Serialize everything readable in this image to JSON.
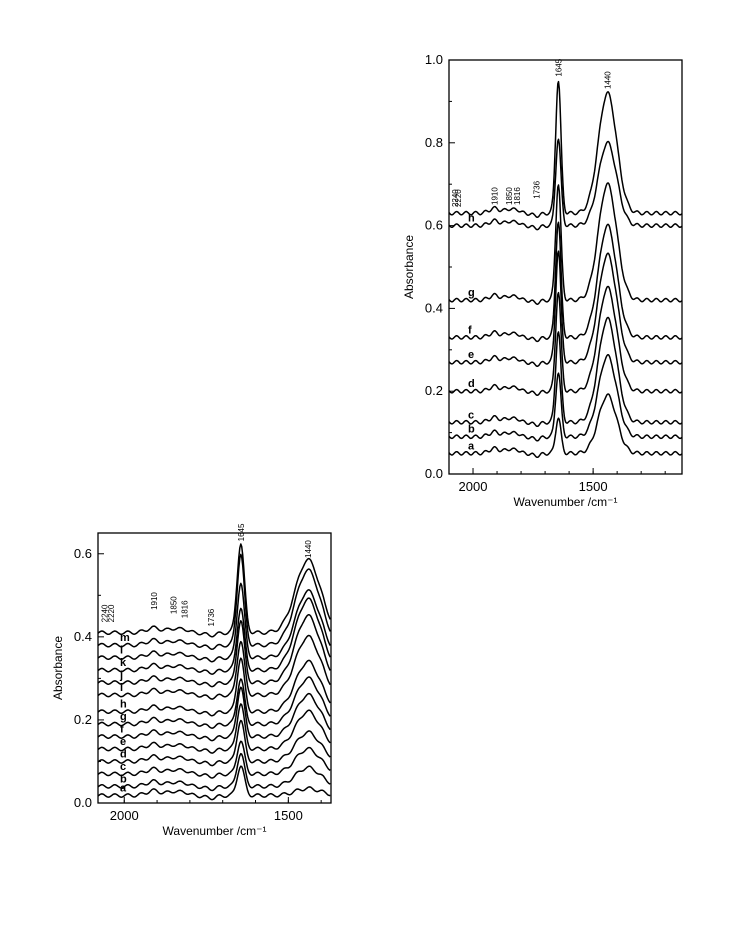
{
  "chart_data": [
    {
      "type": "line",
      "panel": "top",
      "xlabel": "Wavenumber /cm⁻¹",
      "ylabel": "Absorbance",
      "xlim": [
        2100,
        1130
      ],
      "ylim": [
        0,
        1.0
      ],
      "x_ticks": [
        2000,
        1500
      ],
      "x_tick_labels": [
        "2000",
        "1500"
      ],
      "y_ticks": [
        0,
        0.2,
        0.4,
        0.6,
        0.8,
        1.0
      ],
      "y_tick_labels": [
        "0.0",
        "0.2",
        "0.4",
        "0.6",
        "0.8",
        "1.0"
      ],
      "grid": false,
      "peak_labels": [
        {
          "text": "2240",
          "x": 2075,
          "y": 0.64
        },
        {
          "text": "2220",
          "x": 2062,
          "y": 0.64
        },
        {
          "text": "1910",
          "x": 1910,
          "y": 0.645
        },
        {
          "text": "1850",
          "x": 1850,
          "y": 0.645
        },
        {
          "text": "1816",
          "x": 1816,
          "y": 0.645
        },
        {
          "text": "1736",
          "x": 1736,
          "y": 0.66
        },
        {
          "text": "1645",
          "x": 1645,
          "y": 0.955
        },
        {
          "text": "1440",
          "x": 1440,
          "y": 0.925
        }
      ],
      "series": [
        {
          "label": "a",
          "base": 0.05,
          "peak_1645": 0.136,
          "peak_1440": 0.19
        },
        {
          "label": "b",
          "base": 0.09,
          "peak_1645": 0.245,
          "peak_1440": 0.285
        },
        {
          "label": "c",
          "base": 0.125,
          "peak_1645": 0.345,
          "peak_1440": 0.375
        },
        {
          "label": "d",
          "base": 0.2,
          "peak_1645": 0.44,
          "peak_1440": 0.45
        },
        {
          "label": "e",
          "base": 0.27,
          "peak_1645": 0.54,
          "peak_1440": 0.53
        },
        {
          "label": "f",
          "base": 0.33,
          "peak_1645": 0.61,
          "peak_1440": 0.6
        },
        {
          "label": "g",
          "base": 0.42,
          "peak_1645": 0.7,
          "peak_1440": 0.7
        },
        {
          "label": "h",
          "base": 0.6,
          "peak_1645": 0.81,
          "peak_1440": 0.8
        },
        {
          "label": "",
          "base": 0.63,
          "peak_1645": 0.95,
          "peak_1440": 0.92
        }
      ]
    },
    {
      "type": "line",
      "panel": "bottom",
      "xlabel": "Wavenumber /cm⁻¹",
      "ylabel": "Absorbance",
      "xlim": [
        2080,
        1370
      ],
      "ylim": [
        0,
        0.65
      ],
      "x_ticks": [
        2000,
        1500
      ],
      "x_tick_labels": [
        "2000",
        "1500"
      ],
      "y_ticks": [
        0,
        0.2,
        0.4,
        0.6
      ],
      "y_tick_labels": [
        "0.0",
        "0.2",
        "0.4",
        "0.6"
      ],
      "grid": false,
      "peak_labels": [
        {
          "text": "2240",
          "x": 2060,
          "y": 0.43
        },
        {
          "text": "2220",
          "x": 2040,
          "y": 0.43
        },
        {
          "text": "1910",
          "x": 1910,
          "y": 0.46
        },
        {
          "text": "1850",
          "x": 1850,
          "y": 0.45
        },
        {
          "text": "1816",
          "x": 1816,
          "y": 0.44
        },
        {
          "text": "1736",
          "x": 1736,
          "y": 0.42
        },
        {
          "text": "1645",
          "x": 1645,
          "y": 0.625
        },
        {
          "text": "1440",
          "x": 1440,
          "y": 0.585
        }
      ],
      "series": [
        {
          "label": "a",
          "base": 0.018,
          "peak_1645": 0.09,
          "peak_1440": 0.035
        },
        {
          "label": "b",
          "base": 0.04,
          "peak_1645": 0.12,
          "peak_1440": 0.085
        },
        {
          "label": "c",
          "base": 0.07,
          "peak_1645": 0.15,
          "peak_1440": 0.13
        },
        {
          "label": "d",
          "base": 0.1,
          "peak_1645": 0.2,
          "peak_1440": 0.17
        },
        {
          "label": "e",
          "base": 0.13,
          "peak_1645": 0.24,
          "peak_1440": 0.22
        },
        {
          "label": "f",
          "base": 0.16,
          "peak_1645": 0.28,
          "peak_1440": 0.26
        },
        {
          "label": "g",
          "base": 0.19,
          "peak_1645": 0.3,
          "peak_1440": 0.3
        },
        {
          "label": "h",
          "base": 0.22,
          "peak_1645": 0.35,
          "peak_1440": 0.34
        },
        {
          "label": "i",
          "base": 0.26,
          "peak_1645": 0.39,
          "peak_1440": 0.4
        },
        {
          "label": "j",
          "base": 0.29,
          "peak_1645": 0.44,
          "peak_1440": 0.45
        },
        {
          "label": "k",
          "base": 0.32,
          "peak_1645": 0.47,
          "peak_1440": 0.49
        },
        {
          "label": "l",
          "base": 0.35,
          "peak_1645": 0.53,
          "peak_1440": 0.51
        },
        {
          "label": "m",
          "base": 0.38,
          "peak_1645": 0.6,
          "peak_1440": 0.56
        },
        {
          "label": "",
          "base": 0.41,
          "peak_1645": 0.625,
          "peak_1440": 0.585
        }
      ]
    }
  ]
}
